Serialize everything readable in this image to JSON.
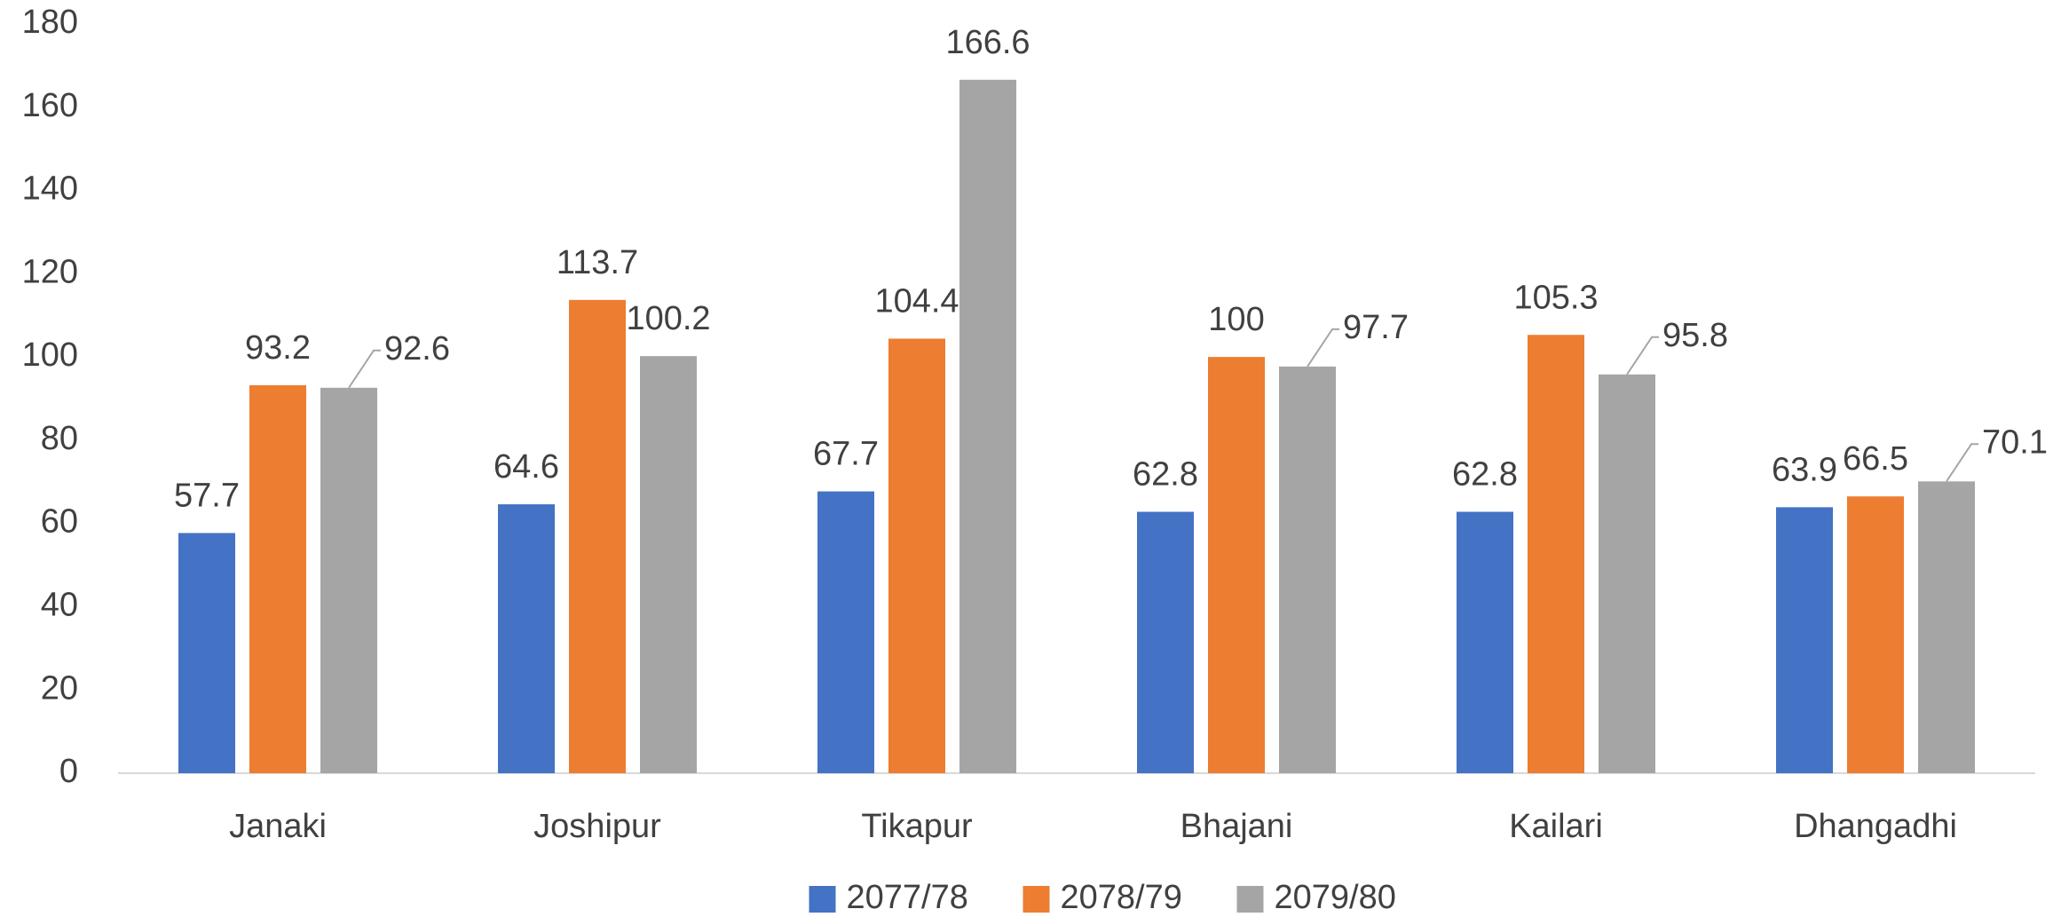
{
  "chart_data": {
    "type": "bar",
    "categories": [
      "Janaki",
      "Joshipur",
      "Tikapur",
      "Bhajani",
      "Kailari",
      "Dhangadhi"
    ],
    "series": [
      {
        "name": "2077/78",
        "color": "#4472c4",
        "values": [
          57.7,
          64.6,
          67.7,
          62.8,
          62.8,
          63.9
        ]
      },
      {
        "name": "2078/79",
        "color": "#ed7d31",
        "values": [
          93.2,
          113.7,
          104.4,
          100,
          105.3,
          66.5
        ]
      },
      {
        "name": "2079/80",
        "color": "#a5a5a5",
        "values": [
          92.6,
          100.2,
          166.6,
          97.7,
          95.8,
          70.1
        ]
      }
    ],
    "ylim": [
      0,
      180
    ],
    "yticks": [
      0,
      20,
      40,
      60,
      80,
      100,
      120,
      140,
      160,
      180
    ],
    "grid": false,
    "legend": "bottom"
  }
}
